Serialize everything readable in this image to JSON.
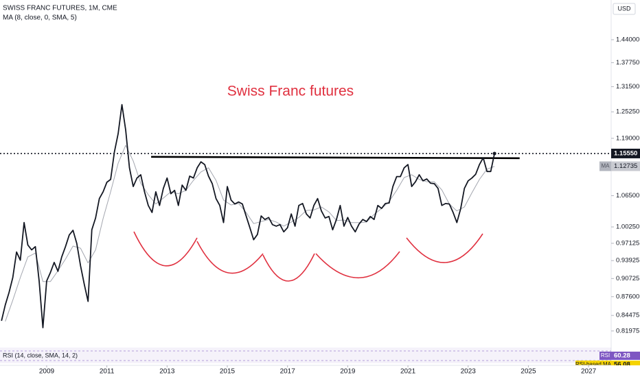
{
  "chart_data": {
    "type": "line",
    "title": "SWISS FRANC FUTURES, 1M, CME",
    "annotation": "Swiss Franc futures",
    "currency": "USD",
    "log_scale": true,
    "grid": false,
    "xlim": [
      2007.45,
      2027.75
    ],
    "xticks": [
      2009,
      2011,
      2013,
      2015,
      2017,
      2019,
      2021,
      2023,
      2025,
      2027
    ],
    "ylim": [
      0.796,
      1.555
    ],
    "yticks": [
      {
        "value": 1.44,
        "label": "1.44000"
      },
      {
        "value": 1.3775,
        "label": "1.37750"
      },
      {
        "value": 1.315,
        "label": "1.31500"
      },
      {
        "value": 1.2525,
        "label": "1.25250"
      },
      {
        "value": 1.19,
        "label": "1.19000"
      },
      {
        "value": 1.065,
        "label": "1.06500"
      },
      {
        "value": 1.0025,
        "label": "1.00250"
      },
      0.97125,
      0.93925,
      0.90725,
      {
        "value": 0.876,
        "label": "0.87600"
      },
      0.84475,
      0.81975
    ],
    "series": [
      {
        "color": "#131722",
        "x": [
          2007.5,
          2007.625,
          2007.75,
          2007.875,
          2008,
          2008.125,
          2008.25,
          2008.375,
          2008.5,
          2008.625,
          2008.75,
          2008.875,
          2009,
          2009.125,
          2009.25,
          2009.375,
          2009.5,
          2009.625,
          2009.75,
          2009.875,
          2010,
          2010.125,
          2010.25,
          2010.375,
          2010.5,
          2010.625,
          2010.75,
          2010.875,
          2011,
          2011.125,
          2011.25,
          2011.375,
          2011.5,
          2011.625,
          2011.75,
          2011.875,
          2012,
          2012.125,
          2012.25,
          2012.375,
          2012.5,
          2012.625,
          2012.75,
          2012.875,
          2013,
          2013.125,
          2013.25,
          2013.375,
          2013.5,
          2013.625,
          2013.75,
          2013.875,
          2014,
          2014.125,
          2014.25,
          2014.375,
          2014.5,
          2014.625,
          2014.75,
          2014.875,
          2015,
          2015.125,
          2015.25,
          2015.375,
          2015.5,
          2015.625,
          2015.75,
          2015.875,
          2016,
          2016.125,
          2016.25,
          2016.375,
          2016.5,
          2016.625,
          2016.75,
          2016.875,
          2017,
          2017.125,
          2017.25,
          2017.375,
          2017.5,
          2017.625,
          2017.75,
          2017.875,
          2018,
          2018.125,
          2018.25,
          2018.375,
          2018.5,
          2018.625,
          2018.75,
          2018.875,
          2019,
          2019.125,
          2019.25,
          2019.375,
          2019.5,
          2019.625,
          2019.75,
          2019.875,
          2020,
          2020.125,
          2020.25,
          2020.375,
          2020.5,
          2020.625,
          2020.75,
          2020.875,
          2021,
          2021.125,
          2021.25,
          2021.375,
          2021.5,
          2021.625,
          2021.75,
          2021.875,
          2022,
          2022.125,
          2022.25,
          2022.375,
          2022.5,
          2022.625,
          2022.75,
          2022.875,
          2023,
          2023.125,
          2023.25,
          2023.375,
          2023.5,
          2023.625,
          2023.75,
          2023.875
        ],
        "values": [
          0.836,
          0.862,
          0.883,
          0.909,
          0.955,
          0.94,
          1.011,
          0.968,
          0.959,
          0.965,
          0.903,
          0.825,
          0.903,
          0.918,
          0.936,
          0.92,
          0.946,
          0.965,
          0.987,
          0.996,
          0.971,
          0.93,
          0.897,
          0.868,
          0.997,
          1.02,
          1.059,
          1.073,
          1.093,
          1.099,
          1.159,
          1.201,
          1.27,
          1.209,
          1.124,
          1.084,
          1.102,
          1.109,
          1.073,
          1.045,
          1.031,
          1.073,
          1.045,
          1.08,
          1.102,
          1.069,
          1.076,
          1.045,
          1.087,
          1.076,
          1.106,
          1.102,
          1.124,
          1.137,
          1.131,
          1.106,
          1.09,
          1.059,
          1.045,
          1.011,
          1.084,
          1.056,
          1.048,
          1.052,
          1.048,
          1.024,
          1.001,
          0.978,
          0.988,
          1.024,
          1.017,
          1.021,
          1.007,
          1.004,
          1.007,
          0.993,
          1.001,
          1.028,
          1.004,
          1.045,
          1.049,
          1.028,
          1.02,
          1.045,
          1.059,
          1.034,
          1.02,
          1.023,
          0.997,
          1.017,
          1.045,
          1.004,
          1.021,
          1.004,
          0.993,
          1.008,
          1.017,
          1.013,
          1.023,
          1.017,
          1.045,
          1.039,
          1.049,
          1.05,
          1.084,
          1.105,
          1.105,
          1.124,
          1.131,
          1.084,
          1.094,
          1.109,
          1.096,
          1.1,
          1.091,
          1.09,
          1.08,
          1.045,
          1.049,
          1.048,
          1.031,
          1.011,
          1.038,
          1.08,
          1.096,
          1.102,
          1.11,
          1.131,
          1.146,
          1.116,
          1.116,
          1.1555
        ]
      },
      {
        "name": "MA (8, close, 0, SMA, 5)",
        "color": "#a3a6af",
        "x": [
          2007.625,
          2007.875,
          2008.125,
          2008.375,
          2008.625,
          2008.875,
          2009.125,
          2009.375,
          2009.625,
          2009.875,
          2010.125,
          2010.375,
          2010.625,
          2010.875,
          2011.125,
          2011.375,
          2011.625,
          2011.875,
          2012.125,
          2012.375,
          2012.625,
          2012.875,
          2013.125,
          2013.375,
          2013.625,
          2013.875,
          2014.125,
          2014.375,
          2014.625,
          2014.875,
          2015.125,
          2015.375,
          2015.625,
          2015.875,
          2016.125,
          2016.375,
          2016.625,
          2016.875,
          2017.125,
          2017.375,
          2017.625,
          2017.875,
          2018.125,
          2018.375,
          2018.625,
          2018.875,
          2019.125,
          2019.375,
          2019.625,
          2019.875,
          2020.125,
          2020.375,
          2020.625,
          2020.875,
          2021.125,
          2021.375,
          2021.625,
          2021.875,
          2022.125,
          2022.375,
          2022.625,
          2022.875,
          2023.125,
          2023.375,
          2023.625,
          2023.875
        ],
        "values": [
          0.835,
          0.87,
          0.909,
          0.946,
          0.953,
          0.902,
          0.902,
          0.921,
          0.942,
          0.966,
          0.962,
          0.935,
          0.959,
          1.019,
          1.073,
          1.134,
          1.174,
          1.139,
          1.091,
          1.067,
          1.048,
          1.06,
          1.073,
          1.069,
          1.076,
          1.097,
          1.115,
          1.124,
          1.097,
          1.056,
          1.046,
          1.049,
          1.031,
          1.009,
          1.013,
          1.017,
          1.012,
          1.004,
          1.012,
          1.021,
          1.035,
          1.036,
          1.042,
          1.032,
          1.015,
          1.016,
          1.011,
          1.011,
          1.012,
          1.027,
          1.039,
          1.053,
          1.076,
          1.103,
          1.109,
          1.099,
          1.094,
          1.094,
          1.077,
          1.048,
          1.034,
          1.042,
          1.071,
          1.099,
          1.121,
          1.127
        ]
      }
    ],
    "trend_line": {
      "x": [
        2012.47,
        2024.71
      ],
      "values": [
        1.148,
        1.145
      ],
      "color": "#000000"
    },
    "price_tag": {
      "value": 1.1555,
      "label": "1.15550"
    },
    "ma_tag": {
      "name": "MA",
      "value": 1.12735,
      "label": "1.12735"
    },
    "rsi": {
      "title": "RSI (14, close, SMA, 14, 2)",
      "tags": [
        {
          "name": "RSI",
          "value": 60.28,
          "color": "#7e57c2"
        },
        {
          "name": "RSI-based MA",
          "value": 56.08,
          "color": "#f5d300"
        }
      ]
    }
  }
}
